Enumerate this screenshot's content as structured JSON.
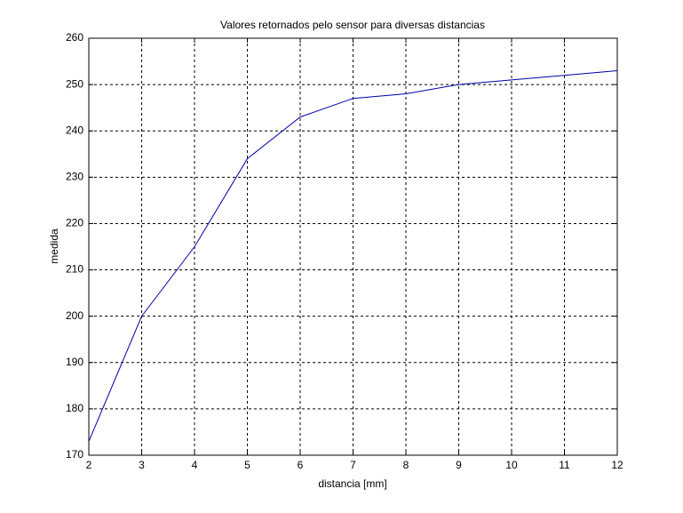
{
  "chart_data": {
    "type": "line",
    "title": "Valores retornados pelo sensor para diversas distancias",
    "x_label": "distancia [mm]",
    "y_label": "medida",
    "x": [
      2,
      3,
      4,
      5,
      6,
      7,
      8,
      9,
      10,
      11,
      12
    ],
    "series": [
      {
        "color": "#0000aa",
        "values": [
          173,
          200,
          215,
          234,
          243,
          247,
          248,
          250,
          251,
          252,
          253
        ]
      }
    ],
    "xlim": [
      2,
      12
    ],
    "xticks": [
      2,
      3,
      4,
      5,
      6,
      7,
      8,
      9,
      10,
      11,
      12
    ],
    "ylim": [
      170,
      260
    ],
    "yticks": [
      170,
      180,
      190,
      200,
      210,
      220,
      230,
      240,
      250,
      260
    ],
    "grid": true
  }
}
